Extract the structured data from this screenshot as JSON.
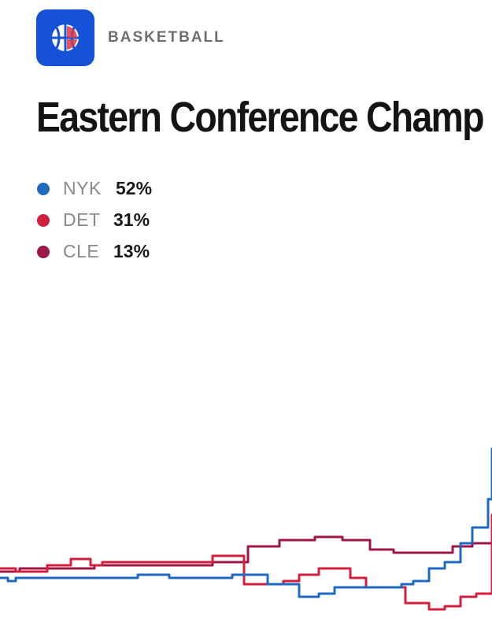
{
  "header": {
    "category": "BASKETBALL",
    "icon": "basketball-icon",
    "icon_color": "#1552d8"
  },
  "title": "Eastern Conference Champ",
  "legend": [
    {
      "team": "NYK",
      "value": "52%",
      "color": "#1f6ac0"
    },
    {
      "team": "DET",
      "value": "31%",
      "color": "#d21f3c"
    },
    {
      "team": "CLE",
      "value": "13%",
      "color": "#9d1744"
    }
  ],
  "chart_data": {
    "type": "line",
    "title": "Eastern Conference Champ",
    "xlabel": "",
    "ylabel": "",
    "ylim": [
      0,
      60
    ],
    "grid": false,
    "legend_position": "top-left",
    "line_shape": "step",
    "x": [
      0,
      1,
      2,
      3,
      4,
      5,
      6,
      7,
      8,
      9,
      10,
      11,
      12,
      13,
      14,
      15,
      16,
      17,
      18,
      19,
      20,
      21,
      22,
      23,
      24,
      25,
      26,
      27,
      28,
      29,
      30,
      31,
      32,
      33,
      34,
      35,
      36,
      37,
      38,
      39,
      40,
      41,
      42,
      43,
      44,
      45,
      46,
      47,
      48,
      49,
      50,
      51,
      52,
      53,
      54,
      55,
      56,
      57,
      58,
      59,
      60,
      61,
      62,
      63,
      64,
      65,
      66,
      67,
      68,
      69,
      70,
      71,
      72,
      73,
      74,
      75,
      76,
      77,
      78,
      79,
      80,
      81,
      82,
      83,
      84,
      85,
      86,
      87,
      88,
      89,
      90,
      91,
      92,
      93,
      94,
      95,
      96,
      97,
      98,
      99,
      100,
      101,
      102,
      103,
      104,
      105,
      106,
      107,
      108,
      109,
      110,
      111,
      112,
      113,
      114,
      115,
      116,
      117,
      118,
      119,
      120,
      121,
      122,
      123,
      124,
      125
    ],
    "series": [
      {
        "name": "NYK",
        "color": "#1f6ac0",
        "values": [
          11,
          11,
          10,
          10,
          11,
          11,
          11,
          11,
          11,
          11,
          11,
          11,
          11,
          11,
          11,
          11,
          11,
          11,
          11,
          11,
          11,
          11,
          11,
          11,
          11,
          11,
          11,
          11,
          11,
          11,
          11,
          11,
          11,
          11,
          11,
          12,
          12,
          12,
          12,
          12,
          12,
          12,
          12,
          11,
          11,
          11,
          11,
          11,
          11,
          11,
          11,
          11,
          11,
          11,
          11,
          11,
          11,
          11,
          11,
          12,
          12,
          12,
          12,
          12,
          12,
          12,
          12,
          12,
          9,
          9,
          9,
          9,
          9,
          9,
          9,
          9,
          5,
          5,
          5,
          5,
          5,
          6,
          6,
          6,
          6,
          8,
          8,
          8,
          8,
          8,
          8,
          8,
          8,
          8,
          8,
          8,
          8,
          8,
          8,
          8,
          8,
          8,
          9,
          9,
          9,
          10,
          10,
          10,
          10,
          14,
          14,
          14,
          14,
          16,
          16,
          16,
          16,
          22,
          22,
          22,
          27,
          27,
          27,
          27,
          36,
          52
        ]
      },
      {
        "name": "DET",
        "color": "#d21f3c",
        "values": [
          14,
          14,
          14,
          14,
          13,
          13,
          13,
          13,
          13,
          13,
          13,
          13,
          15,
          15,
          15,
          15,
          15,
          15,
          17,
          17,
          17,
          17,
          17,
          15,
          15,
          15,
          16,
          16,
          16,
          16,
          16,
          16,
          16,
          16,
          16,
          16,
          16,
          16,
          16,
          16,
          16,
          16,
          16,
          16,
          16,
          16,
          16,
          16,
          16,
          16,
          16,
          16,
          16,
          16,
          18,
          18,
          18,
          18,
          18,
          18,
          18,
          18,
          9,
          9,
          9,
          9,
          9,
          9,
          9,
          9,
          9,
          9,
          10,
          10,
          10,
          10,
          12,
          12,
          12,
          12,
          12,
          14,
          14,
          14,
          14,
          14,
          14,
          14,
          14,
          11,
          11,
          11,
          11,
          8,
          8,
          8,
          8,
          8,
          8,
          8,
          8,
          8,
          8,
          3,
          3,
          3,
          3,
          3,
          3,
          1,
          1,
          1,
          1,
          2,
          2,
          2,
          2,
          5,
          5,
          5,
          5,
          6,
          6,
          6,
          6,
          31
        ]
      },
      {
        "name": "CLE",
        "color": "#9d1744",
        "values": [
          13,
          13,
          13,
          13,
          13,
          14,
          14,
          14,
          14,
          14,
          14,
          14,
          14,
          14,
          14,
          14,
          14,
          14,
          14,
          14,
          14,
          14,
          14,
          14,
          15,
          15,
          15,
          15,
          15,
          15,
          15,
          15,
          15,
          15,
          15,
          15,
          15,
          15,
          15,
          15,
          15,
          15,
          15,
          15,
          15,
          15,
          15,
          15,
          15,
          15,
          15,
          15,
          15,
          15,
          16,
          16,
          16,
          16,
          16,
          16,
          16,
          16,
          16,
          21,
          21,
          21,
          21,
          21,
          21,
          21,
          21,
          23,
          23,
          23,
          23,
          23,
          23,
          23,
          23,
          23,
          24,
          24,
          24,
          24,
          24,
          24,
          24,
          23,
          23,
          23,
          23,
          23,
          23,
          23,
          20,
          20,
          20,
          20,
          20,
          20,
          19,
          19,
          19,
          19,
          19,
          19,
          19,
          19,
          19,
          19,
          19,
          19,
          19,
          19,
          19,
          21,
          21,
          21,
          21,
          21,
          22,
          22,
          22,
          22,
          22,
          13
        ]
      }
    ]
  }
}
